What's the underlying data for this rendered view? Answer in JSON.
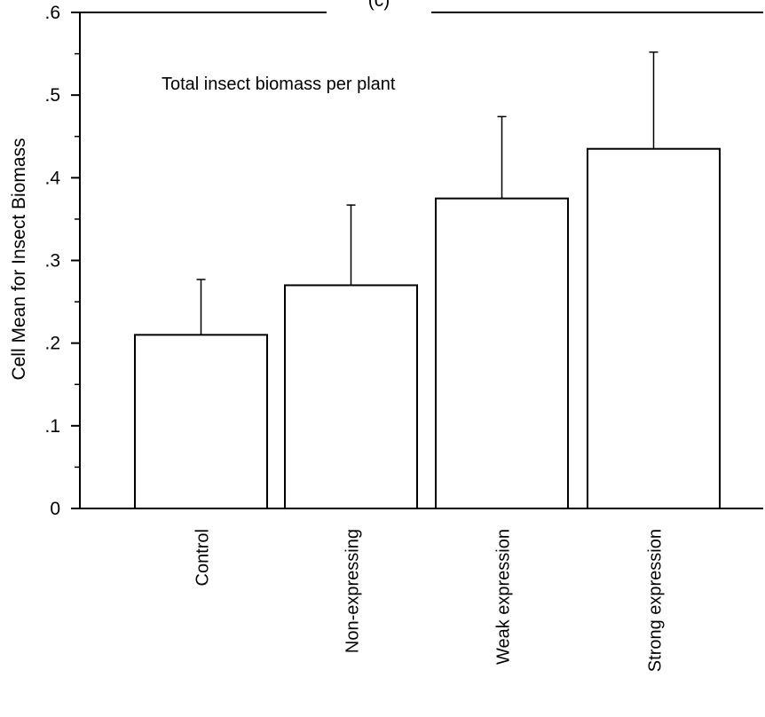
{
  "chart_data": {
    "type": "bar",
    "title_fragment": "(c)",
    "annotation": "Total insect biomass per plant",
    "xlabel": "",
    "ylabel": "Cell Mean for Insect Biomass",
    "ylim": [
      0,
      0.6
    ],
    "yticks": [
      {
        "value": 0,
        "label": "0"
      },
      {
        "value": 0.1,
        "label": ".1"
      },
      {
        "value": 0.2,
        "label": ".2"
      },
      {
        "value": 0.3,
        "label": ".3"
      },
      {
        "value": 0.4,
        "label": ".4"
      },
      {
        "value": 0.5,
        "label": ".5"
      },
      {
        "value": 0.6,
        "label": ".6"
      }
    ],
    "categories": [
      "Control",
      "Non-expressing",
      "Weak expression",
      "Strong expression"
    ],
    "values": [
      0.21,
      0.27,
      0.375,
      0.435
    ],
    "error_upper": [
      0.277,
      0.367,
      0.474,
      0.552
    ],
    "grid": false,
    "colors": {
      "bar_fill": "#ffffff",
      "stroke": "#000000"
    }
  }
}
